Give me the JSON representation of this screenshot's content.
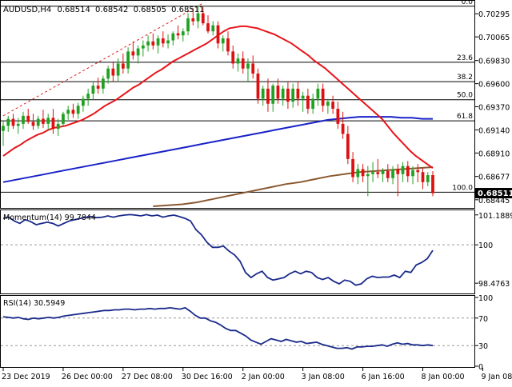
{
  "window": {
    "symbol_header": "AUDUSD,H4",
    "ohlc": [
      "0.68514",
      "0.68542",
      "0.68505",
      "0.68511"
    ],
    "current_price": "0.68511"
  },
  "colors": {
    "background": "#ffffff",
    "bull_candle": "#22a022",
    "bear_candle": "#dd1111",
    "ema_short": "#e8141a",
    "ema_medium": "#1a22c8",
    "ema_long": "#8b5a32",
    "trendline": "#dd2222",
    "fib_lines": "#000000",
    "oscillator_line": "#1a2a8a",
    "price_marker_bg": "#000000",
    "price_marker_text": "#ffffff"
  },
  "chart_data": [
    {
      "type": "candlestick",
      "title": "AUDUSD,H4",
      "ylim": [
        0.6838,
        0.704
      ],
      "y_ticks": [
        "0.70295",
        "0.70065",
        "0.69830",
        "0.69600",
        "0.69370",
        "0.69140",
        "0.68910",
        "0.68677",
        "0.68445"
      ],
      "x_tick_labels": [
        "23 Dec 2019",
        "26 Dec 00:00",
        "27 Dec 08:00",
        "30 Dec 16:00",
        "2 Jan 00:00",
        "3 Jan 08:00",
        "6 Jan 16:00",
        "8 Jan 00:00",
        "9 Jan 08:00"
      ],
      "x_tick_index": [
        0,
        12,
        24,
        36,
        48,
        60,
        72,
        84,
        96
      ],
      "current_price": 0.68511,
      "candles_ohlc": [
        [
          0.6913,
          0.6923,
          0.6898,
          0.6918
        ],
        [
          0.6918,
          0.6928,
          0.6912,
          0.6925
        ],
        [
          0.6925,
          0.693,
          0.6915,
          0.6918
        ],
        [
          0.6918,
          0.6926,
          0.691,
          0.692
        ],
        [
          0.692,
          0.6932,
          0.6915,
          0.6928
        ],
        [
          0.6928,
          0.6935,
          0.692,
          0.6922
        ],
        [
          0.6922,
          0.693,
          0.6914,
          0.6918
        ],
        [
          0.6918,
          0.6928,
          0.6915,
          0.6925
        ],
        [
          0.6925,
          0.6934,
          0.6916,
          0.692
        ],
        [
          0.692,
          0.693,
          0.6914,
          0.6926
        ],
        [
          0.6926,
          0.6935,
          0.691,
          0.6915
        ],
        [
          0.6915,
          0.6925,
          0.6908,
          0.692
        ],
        [
          0.692,
          0.6932,
          0.6917,
          0.693
        ],
        [
          0.693,
          0.6938,
          0.6924,
          0.6934
        ],
        [
          0.6934,
          0.694,
          0.6926,
          0.693
        ],
        [
          0.693,
          0.6941,
          0.6925,
          0.6938
        ],
        [
          0.6938,
          0.6948,
          0.6932,
          0.6945
        ],
        [
          0.6945,
          0.6955,
          0.6938,
          0.695
        ],
        [
          0.695,
          0.6962,
          0.6944,
          0.6958
        ],
        [
          0.6958,
          0.6966,
          0.695,
          0.6955
        ],
        [
          0.6955,
          0.6968,
          0.695,
          0.6965
        ],
        [
          0.6965,
          0.6978,
          0.696,
          0.6975
        ],
        [
          0.6975,
          0.6982,
          0.6962,
          0.6968
        ],
        [
          0.6968,
          0.6985,
          0.6962,
          0.698
        ],
        [
          0.698,
          0.699,
          0.697,
          0.6975
        ],
        [
          0.6975,
          0.6996,
          0.697,
          0.6992
        ],
        [
          0.6992,
          0.7002,
          0.6984,
          0.6988
        ],
        [
          0.6988,
          0.6998,
          0.698,
          0.6995
        ],
        [
          0.6995,
          0.7003,
          0.6987,
          0.6998
        ],
        [
          0.6998,
          0.7008,
          0.6992,
          0.7002
        ],
        [
          0.7002,
          0.701,
          0.6994,
          0.6998
        ],
        [
          0.6998,
          0.7008,
          0.699,
          0.7005
        ],
        [
          0.7005,
          0.7012,
          0.6996,
          0.7
        ],
        [
          0.7,
          0.7009,
          0.6995,
          0.7003
        ],
        [
          0.7003,
          0.7012,
          0.6998,
          0.701
        ],
        [
          0.701,
          0.7018,
          0.7004,
          0.7008
        ],
        [
          0.7008,
          0.7015,
          0.7002,
          0.7012
        ],
        [
          0.7012,
          0.703,
          0.7008,
          0.7025
        ],
        [
          0.7025,
          0.7034,
          0.7018,
          0.7022
        ],
        [
          0.7022,
          0.7038,
          0.7015,
          0.703
        ],
        [
          0.703,
          0.7036,
          0.7018,
          0.702
        ],
        [
          0.702,
          0.7028,
          0.701,
          0.7012
        ],
        [
          0.7012,
          0.7022,
          0.7008,
          0.7018
        ],
        [
          0.7018,
          0.7022,
          0.6995,
          0.7
        ],
        [
          0.7,
          0.7008,
          0.6992,
          0.7005
        ],
        [
          0.7005,
          0.7012,
          0.6988,
          0.6992
        ],
        [
          0.6992,
          0.6998,
          0.6975,
          0.698
        ],
        [
          0.698,
          0.699,
          0.6972,
          0.6985
        ],
        [
          0.6985,
          0.6992,
          0.697,
          0.6975
        ],
        [
          0.6975,
          0.6985,
          0.6962,
          0.698
        ],
        [
          0.698,
          0.6988,
          0.6965,
          0.697
        ],
        [
          0.697,
          0.6975,
          0.694,
          0.6945
        ],
        [
          0.6945,
          0.6958,
          0.6938,
          0.6955
        ],
        [
          0.6955,
          0.6965,
          0.6932,
          0.694
        ],
        [
          0.694,
          0.696,
          0.6932,
          0.6958
        ],
        [
          0.6958,
          0.6965,
          0.694,
          0.6945
        ],
        [
          0.6945,
          0.6958,
          0.6938,
          0.6955
        ],
        [
          0.6955,
          0.6962,
          0.6935,
          0.6942
        ],
        [
          0.6942,
          0.696,
          0.6936,
          0.6955
        ],
        [
          0.6955,
          0.6962,
          0.6938,
          0.6945
        ],
        [
          0.6945,
          0.6952,
          0.6932,
          0.6948
        ],
        [
          0.6948,
          0.6955,
          0.693,
          0.6935
        ],
        [
          0.6935,
          0.695,
          0.693,
          0.6945
        ],
        [
          0.6945,
          0.696,
          0.6938,
          0.6955
        ],
        [
          0.6955,
          0.696,
          0.6932,
          0.6938
        ],
        [
          0.6938,
          0.6945,
          0.693,
          0.6942
        ],
        [
          0.6942,
          0.6948,
          0.693,
          0.6935
        ],
        [
          0.6935,
          0.6942,
          0.6915,
          0.692
        ],
        [
          0.692,
          0.6932,
          0.6905,
          0.691
        ],
        [
          0.691,
          0.6918,
          0.688,
          0.6885
        ],
        [
          0.6885,
          0.6892,
          0.6862,
          0.6867
        ],
        [
          0.6867,
          0.688,
          0.686,
          0.6875
        ],
        [
          0.6875,
          0.688,
          0.6862,
          0.6868
        ],
        [
          0.6868,
          0.6878,
          0.6848,
          0.687
        ],
        [
          0.687,
          0.6882,
          0.6862,
          0.6872
        ],
        [
          0.6872,
          0.6885,
          0.6866,
          0.687
        ],
        [
          0.687,
          0.6876,
          0.6862,
          0.6873
        ],
        [
          0.6873,
          0.688,
          0.6862,
          0.6866
        ],
        [
          0.6866,
          0.6878,
          0.686,
          0.6875
        ],
        [
          0.6875,
          0.688,
          0.6848,
          0.687
        ],
        [
          0.687,
          0.6882,
          0.6862,
          0.6878
        ],
        [
          0.6878,
          0.6883,
          0.6862,
          0.6868
        ],
        [
          0.6868,
          0.6878,
          0.686,
          0.6874
        ],
        [
          0.6874,
          0.688,
          0.6862,
          0.6872
        ],
        [
          0.6872,
          0.6876,
          0.6855,
          0.6862
        ],
        [
          0.6862,
          0.6872,
          0.6858,
          0.6869
        ],
        [
          0.6869,
          0.6873,
          0.6848,
          0.6851
        ]
      ],
      "indicators": {
        "ema_short": [
          0.6888,
          0.6892,
          0.6896,
          0.6899,
          0.6903,
          0.6906,
          0.6909,
          0.6911,
          0.6914,
          0.6916,
          0.6917,
          0.6918,
          0.692,
          0.6922,
          0.6924,
          0.6927,
          0.693,
          0.6934,
          0.6938,
          0.6941,
          0.6944,
          0.6948,
          0.6952,
          0.6956,
          0.6959,
          0.6963,
          0.6967,
          0.6971,
          0.6974,
          0.6978,
          0.6982,
          0.6985,
          0.6988,
          0.6991,
          0.6994,
          0.6997,
          0.7,
          0.7004,
          0.7008,
          0.7012,
          0.7015,
          0.7016,
          0.7017,
          0.7017,
          0.7016,
          0.7015,
          0.7013,
          0.7011,
          0.7009,
          0.7006,
          0.7003,
          0.7,
          0.6996,
          0.6992,
          0.6988,
          0.6983,
          0.6979,
          0.6975,
          0.697,
          0.6965,
          0.696,
          0.6955,
          0.695,
          0.6945,
          0.694,
          0.6935,
          0.693,
          0.6925,
          0.6918,
          0.6911,
          0.6905,
          0.6899,
          0.6893,
          0.6888,
          0.6884,
          0.688,
          0.6876
        ],
        "ema_medium": [
          0.6862,
          0.6864,
          0.6866,
          0.6868,
          0.687,
          0.6872,
          0.6874,
          0.6876,
          0.6878,
          0.688,
          0.6882,
          0.6884,
          0.6886,
          0.6888,
          0.689,
          0.6892,
          0.6894,
          0.6896,
          0.6898,
          0.69,
          0.6902,
          0.6904,
          0.6906,
          0.6908,
          0.691,
          0.6912,
          0.6914,
          0.6916,
          0.6918,
          0.692,
          0.6922,
          0.6924,
          0.6925,
          0.6926,
          0.6927,
          0.6927,
          0.6927,
          0.6927,
          0.6926,
          0.6926,
          0.6925,
          0.6925
        ],
        "ema_long": [
          0.6838,
          0.6839,
          0.684,
          0.6842,
          0.6845,
          0.6848,
          0.6851,
          0.6854,
          0.6857,
          0.686,
          0.6862,
          0.6865,
          0.6868,
          0.687,
          0.6872,
          0.6873,
          0.6874,
          0.6875,
          0.6876,
          0.6877
        ]
      },
      "trendline": {
        "from": [
          0,
          0.6928
        ],
        "to": [
          40,
          0.704
        ]
      },
      "fibonacci": {
        "levels": [
          {
            "label": "0.0",
            "price": 0.7037
          },
          {
            "label": "23.6",
            "price": 0.69812
          },
          {
            "label": "38.2",
            "price": 0.6962
          },
          {
            "label": "50.0",
            "price": 0.6944
          },
          {
            "label": "61.8",
            "price": 0.6923
          },
          {
            "label": "100.0",
            "price": 0.6852
          }
        ]
      }
    },
    {
      "type": "line",
      "title": "Momentum(14) 99.7844",
      "ylim": [
        98.1,
        101.34
      ],
      "y_ticks": [
        "101.1889",
        "100",
        "98.4763"
      ],
      "level_lines": [
        100
      ],
      "values": [
        101.05,
        101.1,
        100.95,
        100.85,
        101.0,
        100.92,
        100.8,
        100.85,
        100.9,
        100.85,
        100.75,
        100.85,
        100.95,
        101.0,
        101.05,
        101.1,
        101.12,
        101.08,
        101.1,
        101.15,
        101.1,
        101.15,
        101.18,
        101.2,
        101.18,
        101.15,
        101.2,
        101.15,
        101.18,
        101.1,
        101.15,
        101.18,
        101.12,
        101.05,
        100.95,
        100.6,
        100.4,
        100.1,
        99.9,
        99.9,
        99.95,
        99.75,
        99.6,
        99.35,
        98.9,
        98.7,
        98.85,
        98.95,
        98.7,
        98.6,
        98.65,
        98.7,
        98.85,
        98.95,
        98.85,
        98.95,
        98.9,
        98.7,
        98.62,
        98.7,
        98.55,
        98.45,
        98.6,
        98.55,
        98.4,
        98.45,
        98.65,
        98.75,
        98.7,
        98.72,
        98.72,
        98.8,
        98.7,
        98.95,
        98.9,
        99.2,
        99.3,
        99.45,
        99.78
      ]
    },
    {
      "type": "line",
      "title": "RSI(14) 30.5949",
      "ylim": [
        0,
        100
      ],
      "y_ticks": [
        "100",
        "70",
        "30",
        "0"
      ],
      "level_lines": [
        70,
        30
      ],
      "values": [
        72,
        71,
        70,
        71,
        69,
        68,
        70,
        69,
        70,
        71,
        70,
        71,
        73,
        74,
        75,
        76,
        77,
        78,
        79,
        80,
        81,
        81,
        82,
        82,
        83,
        83,
        82,
        83,
        83,
        84,
        83,
        84,
        84,
        85,
        84,
        83,
        85,
        80,
        74,
        70,
        70,
        66,
        64,
        60,
        55,
        52,
        52,
        48,
        44,
        38,
        35,
        32,
        36,
        40,
        38,
        36,
        39,
        37,
        35,
        36,
        33,
        34,
        35,
        32,
        30,
        28,
        26,
        26,
        27,
        25,
        28,
        28,
        29,
        29,
        30,
        31,
        29,
        32,
        34,
        32,
        33,
        31,
        31,
        30,
        31,
        30
      ]
    }
  ],
  "x_axis_labels": [
    "23 Dec 2019",
    "26 Dec 00:00",
    "27 Dec 08:00",
    "30 Dec 16:00",
    "2 Jan 00:00",
    "3 Jan 08:00",
    "6 Jan 16:00",
    "8 Jan 00:00",
    "9 Jan 08:00"
  ]
}
